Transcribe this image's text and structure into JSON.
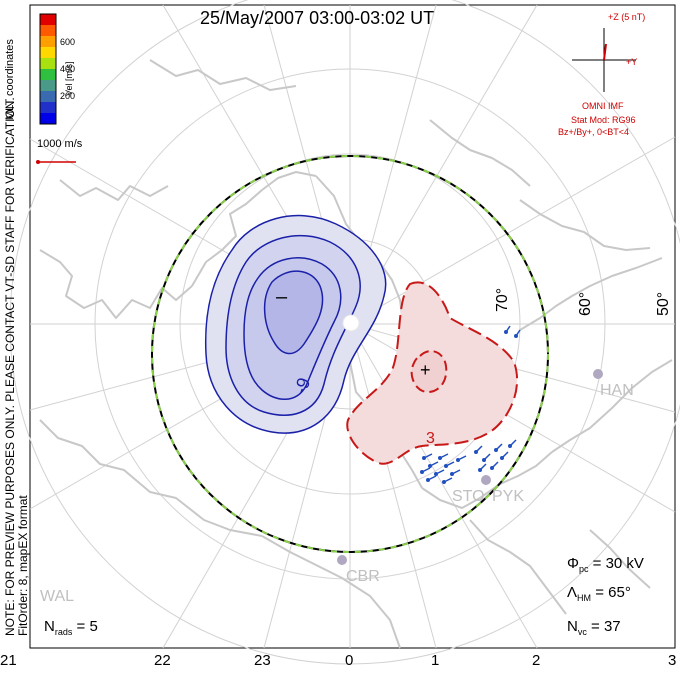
{
  "title": "25/May/2007 03:00-03:02 UT",
  "side_note": {
    "line1": "NOTE: FOR PREVIEW PURPOSES ONLY. PLEASE CONTACT VT-SD STAFF FOR VERIFICATION.",
    "line2": "FitOrder: 8, mapEX format"
  },
  "coordinates_label": "MLT coordinates",
  "colorbar": {
    "label": "Vel [m/s]",
    "ticks": [
      "600",
      "400",
      "200"
    ],
    "colors": [
      "#e00000",
      "#ff5a00",
      "#ffa000",
      "#ffd800",
      "#a8e010",
      "#30c040",
      "#4a9a88",
      "#3a6ab0",
      "#2030c8",
      "#0000e8"
    ]
  },
  "velocity_scale": "1000 m/s",
  "imf": {
    "z_label": "+Z (5 nT)",
    "y_label": "+Y",
    "source": "OMNI IMF",
    "stat_mod": "Stat Mod: RG96",
    "condition": "Bz+/By+, 0<BT<4"
  },
  "stats": {
    "phi_pc_sym": "Φ",
    "phi_pc_sub": "pc",
    "phi_pc_val": "= 30 kV",
    "lambda_sym": "Λ",
    "lambda_sub": "HM",
    "lambda_val": "= 65°",
    "nvc_sym": "N",
    "nvc_sub": "vc",
    "nvc_val": "= 37",
    "nrads_sym": "N",
    "nrads_sub": "rads",
    "nrads_val": "= 5"
  },
  "mlt_labels": [
    "21",
    "22",
    "23",
    "0",
    "1",
    "2",
    "3"
  ],
  "lat_labels": [
    "70°",
    "60°",
    "50°"
  ],
  "contours": {
    "negative_label": "-9",
    "positive_label": "3",
    "min_marker": "–",
    "max_marker": "+"
  },
  "stations": [
    "HAN",
    "STO",
    "PYK",
    "CBR",
    "WAL"
  ],
  "colors": {
    "negative_fill": "#e0e2f2",
    "negative_inner": "#b9bbea",
    "negative_line": "#1a20a8",
    "positive_fill": "#f4dcdc",
    "positive_line": "#c81818",
    "coast": "#c8c8c8",
    "grid": "#d0d0d0",
    "heppner": "#8ad04a"
  }
}
